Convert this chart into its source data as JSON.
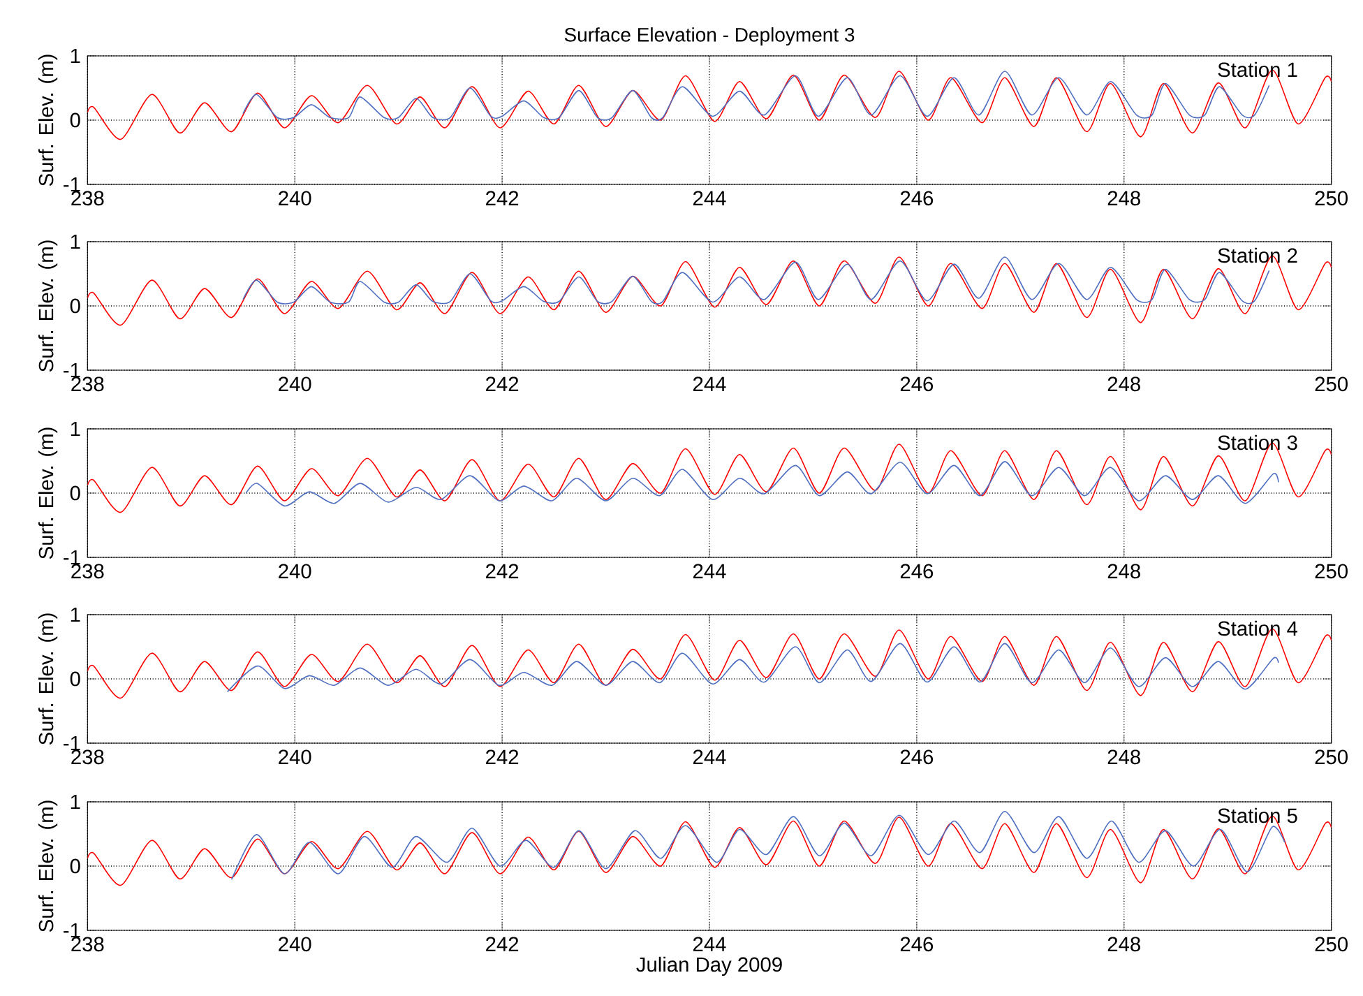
{
  "chart_data": [
    {
      "type": "line",
      "title": "Surface Elevation - Deployment 3",
      "ylabel": "Surf. Elev. (m)",
      "annotations": [
        "Station 1"
      ],
      "xlim": [
        238,
        250
      ],
      "xticks": [
        238,
        240,
        242,
        244,
        246,
        248,
        250
      ],
      "ylim": [
        -1,
        1
      ],
      "yticks": [
        -1,
        0,
        1
      ],
      "grid": true,
      "series": [
        {
          "color": "#ff0000",
          "x": [
            238.0,
            238.06,
            238.32,
            238.62,
            238.89,
            239.13,
            239.39,
            239.64,
            239.9,
            240.16,
            240.42,
            240.7,
            240.98,
            241.21,
            241.45,
            241.71,
            241.98,
            242.25,
            242.5,
            242.74,
            243.0,
            243.26,
            243.53,
            243.77,
            244.05,
            244.29,
            244.55,
            244.81,
            245.06,
            245.3,
            245.6,
            245.83,
            246.11,
            246.33,
            246.63,
            246.85,
            247.13,
            247.35,
            247.64,
            247.87,
            248.16,
            248.38,
            248.66,
            248.91,
            249.17,
            249.43,
            249.68,
            249.94,
            250.0
          ],
          "values": [
            0.12,
            0.2,
            -0.3,
            0.4,
            -0.2,
            0.27,
            -0.18,
            0.42,
            -0.12,
            0.38,
            -0.04,
            0.54,
            -0.06,
            0.36,
            -0.12,
            0.52,
            -0.12,
            0.45,
            -0.06,
            0.54,
            -0.1,
            0.46,
            0.0,
            0.69,
            -0.02,
            0.6,
            0.02,
            0.7,
            0.0,
            0.7,
            0.04,
            0.76,
            0.0,
            0.66,
            -0.04,
            0.66,
            -0.1,
            0.66,
            -0.18,
            0.57,
            -0.26,
            0.57,
            -0.2,
            0.58,
            -0.12,
            0.78,
            -0.06,
            0.66,
            0.6
          ]
        },
        {
          "color": "#4f6fc0",
          "x": [
            239.5,
            239.63,
            239.83,
            239.99,
            240.16,
            240.34,
            240.52,
            240.63,
            240.86,
            241.0,
            241.17,
            241.33,
            241.5,
            241.69,
            241.89,
            242.0,
            242.21,
            242.4,
            242.55,
            242.74,
            242.92,
            243.06,
            243.26,
            243.44,
            243.55,
            243.74,
            244.03,
            244.29,
            244.53,
            244.83,
            245.05,
            245.33,
            245.56,
            245.84,
            246.1,
            246.36,
            246.6,
            246.85,
            247.11,
            247.37,
            247.64,
            247.87,
            248.12,
            248.27,
            248.4,
            248.63,
            248.78,
            248.92,
            249.14,
            249.26,
            249.4
          ],
          "values": [
            0.1,
            0.4,
            0.04,
            0.04,
            0.24,
            0.04,
            0.04,
            0.36,
            0.04,
            0.04,
            0.34,
            0.04,
            0.04,
            0.5,
            0.06,
            0.06,
            0.3,
            0.04,
            0.04,
            0.46,
            0.04,
            0.04,
            0.46,
            0.04,
            0.04,
            0.52,
            0.06,
            0.45,
            0.08,
            0.69,
            0.06,
            0.66,
            0.08,
            0.69,
            0.06,
            0.66,
            0.08,
            0.76,
            0.08,
            0.66,
            0.08,
            0.6,
            0.08,
            0.08,
            0.57,
            0.08,
            0.08,
            0.52,
            0.08,
            0.08,
            0.54
          ]
        }
      ]
    },
    {
      "type": "line",
      "ylabel": "Surf. Elev. (m)",
      "annotations": [
        "Station 2"
      ],
      "xlim": [
        238,
        250
      ],
      "xticks": [
        238,
        240,
        242,
        244,
        246,
        248,
        250
      ],
      "ylim": [
        -1,
        1
      ],
      "yticks": [
        -1,
        0,
        1
      ],
      "grid": true,
      "series": [
        {
          "color": "#ff0000",
          "x": [
            238.0,
            238.06,
            238.32,
            238.62,
            238.89,
            239.13,
            239.39,
            239.64,
            239.9,
            240.16,
            240.42,
            240.7,
            240.98,
            241.21,
            241.45,
            241.71,
            241.98,
            242.25,
            242.5,
            242.74,
            243.0,
            243.26,
            243.53,
            243.77,
            244.05,
            244.29,
            244.55,
            244.81,
            245.06,
            245.3,
            245.6,
            245.83,
            246.11,
            246.33,
            246.63,
            246.85,
            247.13,
            247.35,
            247.64,
            247.87,
            248.16,
            248.38,
            248.66,
            248.91,
            249.17,
            249.43,
            249.68,
            249.94,
            250.0
          ],
          "values": [
            0.12,
            0.2,
            -0.3,
            0.4,
            -0.2,
            0.27,
            -0.18,
            0.42,
            -0.12,
            0.38,
            -0.04,
            0.54,
            -0.06,
            0.36,
            -0.12,
            0.52,
            -0.12,
            0.45,
            -0.06,
            0.54,
            -0.1,
            0.46,
            0.0,
            0.69,
            -0.02,
            0.6,
            0.02,
            0.7,
            0.0,
            0.7,
            0.04,
            0.76,
            0.0,
            0.66,
            -0.04,
            0.66,
            -0.1,
            0.66,
            -0.18,
            0.57,
            -0.26,
            0.57,
            -0.2,
            0.58,
            -0.12,
            0.78,
            -0.06,
            0.66,
            0.6
          ]
        },
        {
          "color": "#4f6fc0",
          "x": [
            239.5,
            239.63,
            239.83,
            239.99,
            240.16,
            240.34,
            240.52,
            240.63,
            240.86,
            241.0,
            241.17,
            241.33,
            241.5,
            241.69,
            241.89,
            242.0,
            242.21,
            242.4,
            242.55,
            242.74,
            242.92,
            243.06,
            243.26,
            243.44,
            243.55,
            243.74,
            244.03,
            244.29,
            244.53,
            244.83,
            245.05,
            245.33,
            245.56,
            245.84,
            246.1,
            246.36,
            246.6,
            246.85,
            247.11,
            247.37,
            247.64,
            247.87,
            248.12,
            248.27,
            248.4,
            248.63,
            248.78,
            248.92,
            249.14,
            249.26,
            249.4
          ],
          "values": [
            0.1,
            0.4,
            0.06,
            0.06,
            0.3,
            0.06,
            0.06,
            0.38,
            0.06,
            0.06,
            0.33,
            0.07,
            0.07,
            0.5,
            0.08,
            0.08,
            0.3,
            0.07,
            0.07,
            0.45,
            0.07,
            0.07,
            0.46,
            0.07,
            0.07,
            0.52,
            0.06,
            0.45,
            0.1,
            0.68,
            0.1,
            0.65,
            0.1,
            0.7,
            0.08,
            0.65,
            0.12,
            0.76,
            0.1,
            0.66,
            0.1,
            0.6,
            0.1,
            0.1,
            0.57,
            0.1,
            0.1,
            0.52,
            0.08,
            0.08,
            0.55
          ]
        }
      ]
    },
    {
      "type": "line",
      "ylabel": "Surf. Elev. (m)",
      "annotations": [
        "Station 3"
      ],
      "xlim": [
        238,
        250
      ],
      "xticks": [
        238,
        240,
        242,
        244,
        246,
        248,
        250
      ],
      "ylim": [
        -1,
        1
      ],
      "yticks": [
        -1,
        0,
        1
      ],
      "grid": true,
      "series": [
        {
          "color": "#ff0000",
          "x": [
            238.0,
            238.06,
            238.32,
            238.62,
            238.89,
            239.13,
            239.39,
            239.64,
            239.9,
            240.16,
            240.42,
            240.7,
            240.98,
            241.21,
            241.45,
            241.71,
            241.98,
            242.25,
            242.5,
            242.74,
            243.0,
            243.26,
            243.53,
            243.77,
            244.05,
            244.29,
            244.55,
            244.81,
            245.06,
            245.3,
            245.6,
            245.83,
            246.11,
            246.33,
            246.63,
            246.85,
            247.13,
            247.35,
            247.64,
            247.87,
            248.16,
            248.38,
            248.66,
            248.91,
            249.17,
            249.43,
            249.68,
            249.94,
            250.0
          ],
          "values": [
            0.12,
            0.2,
            -0.3,
            0.4,
            -0.2,
            0.27,
            -0.18,
            0.42,
            -0.12,
            0.38,
            -0.04,
            0.54,
            -0.06,
            0.36,
            -0.12,
            0.52,
            -0.12,
            0.45,
            -0.06,
            0.54,
            -0.1,
            0.46,
            0.0,
            0.69,
            -0.02,
            0.6,
            0.02,
            0.7,
            0.0,
            0.7,
            0.04,
            0.76,
            0.0,
            0.66,
            -0.04,
            0.66,
            -0.1,
            0.66,
            -0.18,
            0.57,
            -0.26,
            0.57,
            -0.2,
            0.58,
            -0.12,
            0.78,
            -0.06,
            0.66,
            0.6
          ]
        },
        {
          "color": "#4f6fc0",
          "x": [
            239.53,
            239.64,
            239.9,
            240.14,
            240.38,
            240.63,
            240.9,
            241.17,
            241.41,
            241.69,
            241.97,
            242.21,
            242.48,
            242.72,
            243.0,
            243.26,
            243.52,
            243.74,
            244.03,
            244.29,
            244.53,
            244.83,
            245.06,
            245.33,
            245.56,
            245.84,
            246.1,
            246.36,
            246.61,
            246.85,
            247.11,
            247.37,
            247.62,
            247.87,
            248.14,
            248.4,
            248.66,
            248.91,
            249.17,
            249.44,
            249.49
          ],
          "values": [
            0.0,
            0.15,
            -0.2,
            0.02,
            -0.16,
            0.15,
            -0.14,
            0.09,
            -0.1,
            0.27,
            -0.12,
            0.11,
            -0.12,
            0.23,
            -0.12,
            0.23,
            -0.04,
            0.37,
            -0.1,
            0.23,
            -0.01,
            0.43,
            -0.04,
            0.33,
            -0.01,
            0.48,
            -0.01,
            0.43,
            -0.04,
            0.49,
            -0.04,
            0.4,
            -0.04,
            0.4,
            -0.12,
            0.27,
            -0.1,
            0.27,
            -0.16,
            0.3,
            0.17
          ]
        }
      ]
    },
    {
      "type": "line",
      "ylabel": "Surf. Elev. (m)",
      "annotations": [
        "Station 4"
      ],
      "xlim": [
        238,
        250
      ],
      "xticks": [
        238,
        240,
        242,
        244,
        246,
        248,
        250
      ],
      "ylim": [
        -1,
        1
      ],
      "yticks": [
        -1,
        0,
        1
      ],
      "grid": true,
      "series": [
        {
          "color": "#ff0000",
          "x": [
            238.0,
            238.06,
            238.32,
            238.62,
            238.89,
            239.13,
            239.39,
            239.64,
            239.9,
            240.16,
            240.42,
            240.7,
            240.98,
            241.21,
            241.45,
            241.71,
            241.98,
            242.25,
            242.5,
            242.74,
            243.0,
            243.26,
            243.53,
            243.77,
            244.05,
            244.29,
            244.55,
            244.81,
            245.06,
            245.3,
            245.6,
            245.83,
            246.11,
            246.33,
            246.63,
            246.85,
            247.13,
            247.35,
            247.64,
            247.87,
            248.16,
            248.38,
            248.66,
            248.91,
            249.17,
            249.43,
            249.68,
            249.94,
            250.0
          ],
          "values": [
            0.12,
            0.2,
            -0.3,
            0.4,
            -0.2,
            0.27,
            -0.18,
            0.42,
            -0.12,
            0.38,
            -0.04,
            0.54,
            -0.06,
            0.36,
            -0.12,
            0.52,
            -0.12,
            0.45,
            -0.06,
            0.54,
            -0.1,
            0.46,
            0.0,
            0.69,
            -0.02,
            0.6,
            0.02,
            0.7,
            0.0,
            0.7,
            0.04,
            0.76,
            0.0,
            0.66,
            -0.04,
            0.66,
            -0.1,
            0.66,
            -0.18,
            0.57,
            -0.26,
            0.57,
            -0.2,
            0.58,
            -0.12,
            0.78,
            -0.06,
            0.66,
            0.6
          ]
        },
        {
          "color": "#4f6fc0",
          "x": [
            239.35,
            239.64,
            239.9,
            240.14,
            240.38,
            240.63,
            240.9,
            241.17,
            241.41,
            241.69,
            241.97,
            242.21,
            242.48,
            242.72,
            243.0,
            243.26,
            243.52,
            243.74,
            244.03,
            244.29,
            244.53,
            244.83,
            245.06,
            245.33,
            245.56,
            245.84,
            246.1,
            246.36,
            246.61,
            246.85,
            247.11,
            247.37,
            247.62,
            247.87,
            248.14,
            248.4,
            248.66,
            248.91,
            249.17,
            249.44,
            249.49
          ],
          "values": [
            -0.2,
            0.2,
            -0.15,
            0.05,
            -0.1,
            0.17,
            -0.1,
            0.15,
            -0.08,
            0.3,
            -0.1,
            0.1,
            -0.1,
            0.27,
            -0.1,
            0.27,
            -0.06,
            0.4,
            -0.08,
            0.3,
            -0.05,
            0.5,
            -0.06,
            0.45,
            -0.04,
            0.55,
            -0.05,
            0.5,
            -0.05,
            0.55,
            -0.06,
            0.45,
            -0.06,
            0.48,
            -0.12,
            0.33,
            -0.12,
            0.27,
            -0.16,
            0.32,
            0.25
          ]
        }
      ]
    },
    {
      "type": "line",
      "xlabel": "Julian Day 2009",
      "ylabel": "Surf. Elev. (m)",
      "annotations": [
        "Station 5"
      ],
      "xlim": [
        238,
        250
      ],
      "xticks": [
        238,
        240,
        242,
        244,
        246,
        248,
        250
      ],
      "ylim": [
        -1,
        1
      ],
      "yticks": [
        -1,
        0,
        1
      ],
      "grid": true,
      "series": [
        {
          "color": "#ff0000",
          "x": [
            238.0,
            238.06,
            238.32,
            238.62,
            238.89,
            239.13,
            239.39,
            239.64,
            239.9,
            240.16,
            240.42,
            240.7,
            240.98,
            241.21,
            241.45,
            241.71,
            241.98,
            242.25,
            242.5,
            242.74,
            243.0,
            243.26,
            243.53,
            243.77,
            244.05,
            244.29,
            244.55,
            244.81,
            245.06,
            245.3,
            245.6,
            245.83,
            246.11,
            246.33,
            246.63,
            246.85,
            247.13,
            247.35,
            247.64,
            247.87,
            248.16,
            248.38,
            248.66,
            248.91,
            249.17,
            249.43,
            249.68,
            249.94,
            250.0
          ],
          "values": [
            0.12,
            0.2,
            -0.3,
            0.4,
            -0.2,
            0.27,
            -0.18,
            0.42,
            -0.12,
            0.38,
            -0.04,
            0.54,
            -0.06,
            0.36,
            -0.12,
            0.52,
            -0.12,
            0.45,
            -0.06,
            0.54,
            -0.1,
            0.46,
            0.0,
            0.69,
            -0.02,
            0.6,
            0.02,
            0.7,
            0.0,
            0.7,
            0.04,
            0.76,
            0.0,
            0.66,
            -0.04,
            0.66,
            -0.1,
            0.66,
            -0.18,
            0.57,
            -0.26,
            0.57,
            -0.2,
            0.58,
            -0.12,
            0.78,
            -0.06,
            0.66,
            0.6
          ]
        },
        {
          "color": "#4f6fc0",
          "x": [
            239.39,
            239.63,
            239.9,
            240.14,
            240.42,
            240.67,
            240.94,
            241.17,
            241.47,
            241.71,
            241.98,
            242.23,
            242.5,
            242.74,
            243.0,
            243.28,
            243.53,
            243.77,
            244.07,
            244.29,
            244.55,
            244.81,
            245.06,
            245.3,
            245.56,
            245.83,
            246.11,
            246.36,
            246.61,
            246.85,
            247.13,
            247.37,
            247.64,
            247.88,
            248.14,
            248.4,
            248.67,
            248.93,
            249.19,
            249.43,
            249.55
          ],
          "values": [
            -0.21,
            0.49,
            -0.12,
            0.37,
            -0.12,
            0.46,
            -0.02,
            0.46,
            0.06,
            0.59,
            0.0,
            0.4,
            -0.02,
            0.55,
            -0.04,
            0.55,
            0.12,
            0.63,
            0.06,
            0.57,
            0.18,
            0.77,
            0.16,
            0.67,
            0.16,
            0.79,
            0.18,
            0.7,
            0.21,
            0.85,
            0.21,
            0.77,
            0.12,
            0.7,
            0.06,
            0.55,
            0.0,
            0.57,
            -0.09,
            0.61,
            0.37
          ]
        }
      ]
    }
  ]
}
